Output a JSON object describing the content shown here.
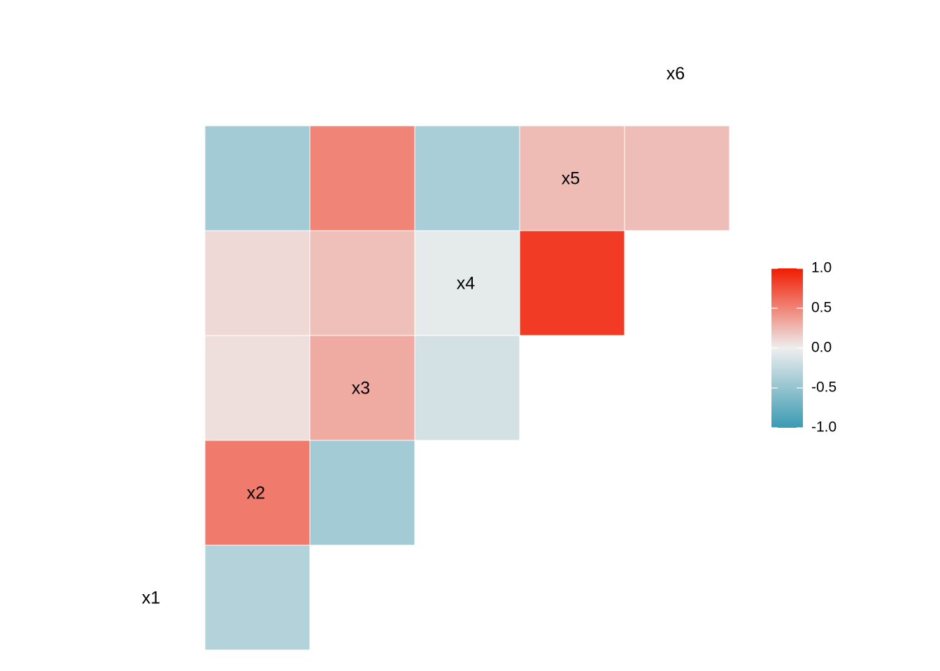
{
  "chart_data": {
    "type": "heatmap",
    "layout": "lower-triangle correlation matrix",
    "variables": [
      "x1",
      "x2",
      "x3",
      "x4",
      "x5",
      "x6"
    ],
    "cells": [
      {
        "row": "x2",
        "col": "x1",
        "value": -0.33
      },
      {
        "row": "x3",
        "col": "x1",
        "value": 0.55
      },
      {
        "row": "x3",
        "col": "x2",
        "value": -0.42
      },
      {
        "row": "x4",
        "col": "x1",
        "value": 0.07
      },
      {
        "row": "x4",
        "col": "x2",
        "value": 0.32
      },
      {
        "row": "x4",
        "col": "x3",
        "value": -0.15
      },
      {
        "row": "x5",
        "col": "x1",
        "value": 0.1
      },
      {
        "row": "x5",
        "col": "x2",
        "value": 0.22
      },
      {
        "row": "x5",
        "col": "x3",
        "value": -0.05
      },
      {
        "row": "x5",
        "col": "x4",
        "value": 0.85
      },
      {
        "row": "x6",
        "col": "x1",
        "value": -0.42
      },
      {
        "row": "x6",
        "col": "x2",
        "value": 0.5
      },
      {
        "row": "x6",
        "col": "x3",
        "value": -0.38
      },
      {
        "row": "x6",
        "col": "x4",
        "value": 0.24
      },
      {
        "row": "x6",
        "col": "x5",
        "value": 0.23
      }
    ],
    "colorscale": {
      "min": -1.0,
      "mid": 0.0,
      "max": 1.0,
      "low_color": "#3A9AB2",
      "mid_color": "#EEEEEE",
      "high_color": "#F11B00"
    },
    "legend": {
      "placement": "right",
      "ticks": [
        "1.0",
        "0.5",
        "0.0",
        "-0.5",
        "-1.0"
      ]
    },
    "grid": false,
    "title": "",
    "xlabel": "",
    "ylabel": ""
  }
}
